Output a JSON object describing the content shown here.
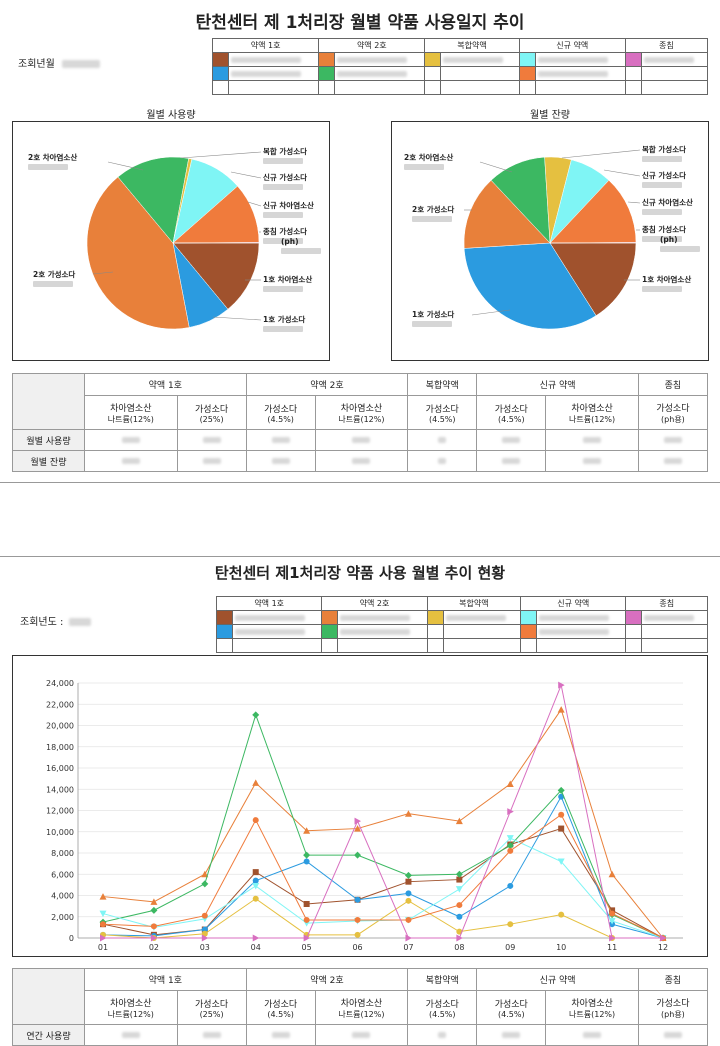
{
  "page1": {
    "title": "탄천센터 제 1처리장 월별 약품 사용일지 추이",
    "query_label": "조회년월",
    "legend_headers": [
      "약액 1호",
      "약액 2호",
      "복합약액",
      "신규 약액",
      "종침"
    ],
    "pie_titles": [
      "월별 사용량",
      "월별 잔량"
    ]
  },
  "page2": {
    "title": "탄천센터 제1처리장 약품 사용 월별 추이 현황",
    "query_label": "조회년도 :",
    "legend_headers": [
      "약액 1호",
      "약액 2호",
      "복합약액",
      "신규 약액",
      "종침"
    ]
  },
  "summary": {
    "groups": [
      "약액 1호",
      "약액 2호",
      "복합약액",
      "신규 약액",
      "종침"
    ],
    "subs": [
      [
        "차아염소산",
        "나트륨(12%)"
      ],
      [
        "가성소다",
        "(25%)"
      ],
      [
        "가성소다",
        "(4.5%)"
      ],
      [
        "차아염소산",
        "나트륨(12%)"
      ],
      [
        "가성소다",
        "(4.5%)"
      ],
      [
        "가성소다",
        "(4.5%)"
      ],
      [
        "차아염소산",
        "나트륨(12%)"
      ],
      [
        "가성소다",
        "(ph용)"
      ]
    ],
    "rows1": [
      "월별 사용량",
      "월별 잔량"
    ],
    "rows2": [
      "연간 사용량"
    ]
  },
  "colors": {
    "c1": "#a0522d",
    "c2": "#e8803a",
    "c3": "#e5c040",
    "c4": "#7ff5f5",
    "c5": "#d86fc0",
    "c6": "#2b9be0",
    "c7": "#3cb862",
    "c8": "#f07b3c"
  },
  "pie_labels": {
    "left": [
      "2호 차아염소산",
      "2호 가성소다",
      "복합 가성소다",
      "신규 가성소다",
      "신규 차아염소산",
      "종침 가성소다",
      "(ph)",
      "1호 차아염소산",
      "1호 가성소다"
    ],
    "right": [
      "2호 차아염소산",
      "2호 가성소다",
      "1호 가성소다",
      "복합 가성소다",
      "신규 가성소다",
      "신규 차아염소산",
      "종침 가성소다",
      "(ph)",
      "1호 차아염소산"
    ]
  },
  "chart_data": [
    {
      "type": "pie",
      "title": "월별 사용량",
      "slices": [
        {
          "label": "1호 차아염소산",
          "value": 14,
          "color": "#a0522d"
        },
        {
          "label": "1호 가성소다",
          "value": 8,
          "color": "#2b9be0"
        },
        {
          "label": "2호 가성소다",
          "value": 42,
          "color": "#e8803a"
        },
        {
          "label": "2호 차아염소산",
          "value": 14,
          "color": "#3cb862"
        },
        {
          "label": "복합 가성소다",
          "value": 0.6,
          "color": "#e5c040"
        },
        {
          "label": "신규 가성소다",
          "value": 10,
          "color": "#7ff5f5"
        },
        {
          "label": "신규 차아염소산",
          "value": 11.4,
          "color": "#f07b3c"
        },
        {
          "label": "종침 가성소다 (ph)",
          "value": 0.1,
          "color": "#d86fc0"
        }
      ]
    },
    {
      "type": "pie",
      "title": "월별 잔량",
      "slices": [
        {
          "label": "1호 차아염소산",
          "value": 16,
          "color": "#a0522d"
        },
        {
          "label": "1호 가성소다",
          "value": 33,
          "color": "#2b9be0"
        },
        {
          "label": "2호 가성소다",
          "value": 14,
          "color": "#e8803a"
        },
        {
          "label": "2호 차아염소산",
          "value": 11,
          "color": "#3cb862"
        },
        {
          "label": "복합 가성소다",
          "value": 5,
          "color": "#e5c040"
        },
        {
          "label": "신규 가성소다",
          "value": 8,
          "color": "#7ff5f5"
        },
        {
          "label": "신규 차아염소산",
          "value": 12.9,
          "color": "#f07b3c"
        },
        {
          "label": "종침 가성소다 (ph)",
          "value": 0.1,
          "color": "#d86fc0"
        }
      ]
    },
    {
      "type": "line",
      "x": [
        "01",
        "02",
        "03",
        "04",
        "05",
        "06",
        "07",
        "08",
        "09",
        "10",
        "11",
        "12"
      ],
      "ylim": [
        0,
        24000
      ],
      "yticks": [
        0,
        2000,
        4000,
        6000,
        8000,
        10000,
        12000,
        14000,
        16000,
        18000,
        20000,
        22000,
        24000
      ],
      "yticklabels": [
        "0",
        "2,000",
        "4,000",
        "6,000",
        "8,000",
        "10,000",
        "12,000",
        "14,000",
        "16,000",
        "18,000",
        "20,000",
        "22,000",
        "24,000"
      ],
      "series": [
        {
          "color": "#a0522d",
          "marker": "square",
          "values": [
            1300,
            300,
            800,
            6200,
            3200,
            3600,
            5300,
            5500,
            8800,
            10300,
            2600,
            0
          ]
        },
        {
          "color": "#2b9be0",
          "marker": "circle",
          "values": [
            300,
            200,
            800,
            5400,
            7200,
            3600,
            4200,
            2000,
            4900,
            13300,
            1300,
            0
          ]
        },
        {
          "color": "#e8803a",
          "marker": "triangle",
          "values": [
            3900,
            3400,
            6000,
            14600,
            10100,
            10300,
            11700,
            11000,
            14500,
            21500,
            6000,
            0
          ]
        },
        {
          "color": "#3cb862",
          "marker": "diamond",
          "values": [
            1500,
            2600,
            5100,
            21000,
            7800,
            7800,
            5900,
            6000,
            8700,
            13900,
            2200,
            0
          ]
        },
        {
          "color": "#e5c040",
          "marker": "circle",
          "values": [
            300,
            0,
            400,
            3700,
            300,
            300,
            3500,
            600,
            1300,
            2200,
            0,
            0
          ]
        },
        {
          "color": "#7ff5f5",
          "marker": "triangle-down",
          "values": [
            2300,
            1000,
            1800,
            4900,
            1400,
            1600,
            1700,
            4600,
            9400,
            7200,
            1600,
            0
          ]
        },
        {
          "color": "#f07b3c",
          "marker": "circle",
          "values": [
            1300,
            1100,
            2100,
            11100,
            1700,
            1700,
            1700,
            3100,
            8200,
            11600,
            2300,
            0
          ]
        },
        {
          "color": "#d86fc0",
          "marker": "triangle-right",
          "values": [
            0,
            0,
            0,
            0,
            0,
            11000,
            0,
            0,
            11900,
            23800,
            0,
            0
          ]
        }
      ]
    }
  ]
}
